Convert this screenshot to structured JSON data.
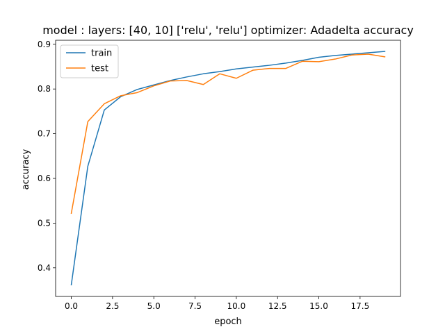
{
  "chart_data": {
    "type": "line",
    "title": "model : layers: [40, 10] ['relu', 'relu'] optimizer: Adadelta accuracy",
    "xlabel": "epoch",
    "ylabel": "accuracy",
    "xlim": [
      -0.95,
      19.95
    ],
    "ylim": [
      0.336,
      0.909
    ],
    "x_ticks": [
      0.0,
      2.5,
      5.0,
      7.5,
      10.0,
      12.5,
      15.0,
      17.5
    ],
    "x_tick_labels": [
      "0.0",
      "2.5",
      "5.0",
      "7.5",
      "10.0",
      "12.5",
      "15.0",
      "17.5"
    ],
    "y_ticks": [
      0.4,
      0.5,
      0.6,
      0.7,
      0.8,
      0.9
    ],
    "y_tick_labels": [
      "0.4",
      "0.5",
      "0.6",
      "0.7",
      "0.8",
      "0.9"
    ],
    "grid": false,
    "legend_position": "top-left",
    "x": [
      0,
      1,
      2,
      3,
      4,
      5,
      6,
      7,
      8,
      9,
      10,
      11,
      12,
      13,
      14,
      15,
      16,
      17,
      18,
      19
    ],
    "series": [
      {
        "name": "train",
        "color": "#1f77b4",
        "values": [
          0.362,
          0.627,
          0.753,
          0.783,
          0.799,
          0.809,
          0.819,
          0.827,
          0.834,
          0.839,
          0.845,
          0.849,
          0.853,
          0.858,
          0.864,
          0.871,
          0.875,
          0.878,
          0.881,
          0.884
        ]
      },
      {
        "name": "test",
        "color": "#ff7f0e",
        "values": [
          0.522,
          0.727,
          0.767,
          0.785,
          0.792,
          0.807,
          0.818,
          0.819,
          0.81,
          0.834,
          0.824,
          0.842,
          0.846,
          0.846,
          0.862,
          0.861,
          0.867,
          0.876,
          0.878,
          0.872
        ]
      }
    ]
  }
}
